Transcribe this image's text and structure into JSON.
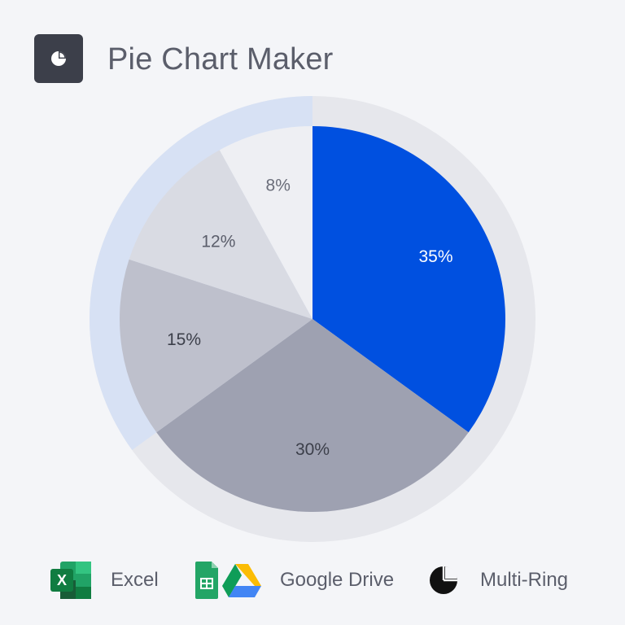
{
  "header": {
    "title": "Pie Chart Maker",
    "icon": "pie-chart-icon"
  },
  "chart_data": {
    "type": "pie",
    "values": [
      35,
      30,
      15,
      12,
      8
    ],
    "labels": [
      "35%",
      "30%",
      "15%",
      "12%",
      "8%"
    ],
    "colors": [
      "#0050e0",
      "#9ea1b1",
      "#bec0cc",
      "#d9dbe3",
      "#eeeff3"
    ],
    "label_colors": [
      "#ffffff",
      "#3c3f4a",
      "#3c3f4a",
      "#5b5e6b",
      "#6b6e7a"
    ],
    "start": "12 o'clock",
    "direction": "clockwise",
    "outer_ring": {
      "color": "#e6e7ec",
      "highlight_color": "#d7e1f4",
      "highlight_share": 0.35
    }
  },
  "integrations": [
    {
      "label": "Excel",
      "icon": "excel-icon"
    },
    {
      "label": "Google Drive",
      "icon": "google-drive-icon"
    },
    {
      "label": "Multi-Ring",
      "icon": "multi-ring-icon"
    }
  ]
}
